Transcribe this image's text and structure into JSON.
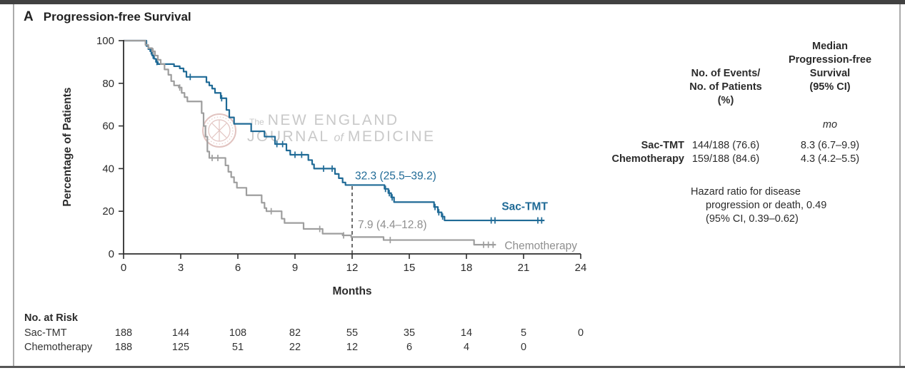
{
  "panel": {
    "letter": "A",
    "title": "Progression-free Survival"
  },
  "colors": {
    "sac_tmt": "#1f6a96",
    "chemo": "#9e9e9e",
    "axis": "#2f2f2f",
    "text": "#2b2b2b",
    "annotation_gray": "#8f8f8f",
    "watermark": "#c9c9c9",
    "seal": "#c9938d"
  },
  "watermark": {
    "the": "The",
    "line1": "NEW ENGLAND",
    "journal": "JOURNAL",
    "of": "of",
    "medicine": "MEDICINE"
  },
  "chart_data": {
    "type": "line",
    "subtype": "kaplan-meier-step",
    "xlabel": "Months",
    "ylabel": "Percentage of Patients",
    "xlim": [
      0,
      24
    ],
    "ylim": [
      0,
      100
    ],
    "xticks": [
      0,
      3,
      6,
      9,
      12,
      15,
      18,
      21,
      24
    ],
    "yticks": [
      0,
      20,
      40,
      60,
      80,
      100
    ],
    "grid": false,
    "dashed_reference_month": 12,
    "series": [
      {
        "name": "Sac-TMT",
        "color_key": "sac_tmt",
        "annotation": "32.3 (25.5–39.2)",
        "annotation_x": 12.15,
        "annotation_y": 35,
        "end_label": "Sac-TMT",
        "end_label_x": 19.85,
        "end_label_y": 20.5,
        "end_label_bold": true,
        "steps": [
          [
            0,
            100
          ],
          [
            1.1,
            100
          ],
          [
            1.2,
            97.5
          ],
          [
            1.3,
            96
          ],
          [
            1.4,
            95
          ],
          [
            1.5,
            93
          ],
          [
            1.6,
            91.5
          ],
          [
            1.7,
            90
          ],
          [
            1.8,
            89
          ],
          [
            2.55,
            89
          ],
          [
            2.65,
            88
          ],
          [
            2.95,
            87
          ],
          [
            3.15,
            85.5
          ],
          [
            3.3,
            83
          ],
          [
            4.25,
            83
          ],
          [
            4.35,
            80.5
          ],
          [
            4.5,
            79
          ],
          [
            4.65,
            77.5
          ],
          [
            4.8,
            75.5
          ],
          [
            5.1,
            73
          ],
          [
            5.4,
            67.5
          ],
          [
            5.55,
            64
          ],
          [
            5.8,
            61
          ],
          [
            6.6,
            61
          ],
          [
            6.7,
            57.5
          ],
          [
            7.3,
            57.5
          ],
          [
            7.4,
            55
          ],
          [
            7.85,
            55
          ],
          [
            7.95,
            51.5
          ],
          [
            8.45,
            51.5
          ],
          [
            8.55,
            48.5
          ],
          [
            8.75,
            46.5
          ],
          [
            9.6,
            46.5
          ],
          [
            9.7,
            44
          ],
          [
            9.9,
            42
          ],
          [
            10.0,
            40
          ],
          [
            11.0,
            40
          ],
          [
            11.1,
            37.5
          ],
          [
            11.3,
            35.5
          ],
          [
            11.5,
            33.5
          ],
          [
            11.65,
            32.3
          ],
          [
            13.6,
            32.3
          ],
          [
            13.7,
            30.5
          ],
          [
            13.9,
            28.5
          ],
          [
            14.05,
            26.5
          ],
          [
            14.2,
            24.3
          ],
          [
            16.2,
            24.3
          ],
          [
            16.3,
            22
          ],
          [
            16.5,
            19.5
          ],
          [
            16.7,
            17.5
          ],
          [
            16.85,
            15.7
          ],
          [
            22.1,
            15.7
          ]
        ],
        "censors": [
          [
            1.45,
            95
          ],
          [
            1.55,
            93
          ],
          [
            1.75,
            90
          ],
          [
            3.5,
            83
          ],
          [
            5.15,
            73
          ],
          [
            8.05,
            51.5
          ],
          [
            8.35,
            51.5
          ],
          [
            9.0,
            46.5
          ],
          [
            9.35,
            46.5
          ],
          [
            10.5,
            40
          ],
          [
            10.95,
            40
          ],
          [
            13.75,
            30.5
          ],
          [
            13.95,
            28.5
          ],
          [
            14.1,
            26.5
          ],
          [
            16.35,
            22
          ],
          [
            16.55,
            19.5
          ],
          [
            16.75,
            17.5
          ],
          [
            19.3,
            15.7
          ],
          [
            19.5,
            15.7
          ],
          [
            21.75,
            15.7
          ],
          [
            21.95,
            15.7
          ]
        ]
      },
      {
        "name": "Chemotherapy",
        "color_key": "chemo",
        "annotation": "7.9 (4.4–12.8)",
        "annotation_x": 12.3,
        "annotation_y": 12,
        "end_label": "Chemotherapy",
        "end_label_x": 20.0,
        "end_label_y": 2.2,
        "end_label_bold": false,
        "steps": [
          [
            0,
            100
          ],
          [
            1.05,
            100
          ],
          [
            1.15,
            98
          ],
          [
            1.3,
            96.5
          ],
          [
            1.5,
            95
          ],
          [
            1.65,
            93
          ],
          [
            1.8,
            91
          ],
          [
            1.95,
            89
          ],
          [
            2.15,
            86.5
          ],
          [
            2.35,
            84
          ],
          [
            2.5,
            81
          ],
          [
            2.65,
            79
          ],
          [
            2.9,
            78
          ],
          [
            3.05,
            75.5
          ],
          [
            3.2,
            73.5
          ],
          [
            3.35,
            71.5
          ],
          [
            4.0,
            71.5
          ],
          [
            4.1,
            66
          ],
          [
            4.2,
            60
          ],
          [
            4.3,
            55
          ],
          [
            4.4,
            48
          ],
          [
            4.5,
            45
          ],
          [
            5.25,
            45
          ],
          [
            5.35,
            41.5
          ],
          [
            5.5,
            38.5
          ],
          [
            5.65,
            36
          ],
          [
            5.8,
            33.5
          ],
          [
            5.95,
            31
          ],
          [
            6.35,
            31
          ],
          [
            6.45,
            27.5
          ],
          [
            7.15,
            27.5
          ],
          [
            7.25,
            24
          ],
          [
            7.4,
            21.5
          ],
          [
            7.5,
            20
          ],
          [
            8.2,
            20
          ],
          [
            8.3,
            16.5
          ],
          [
            8.45,
            14.5
          ],
          [
            9.35,
            14.5
          ],
          [
            9.45,
            11.7
          ],
          [
            10.35,
            11.7
          ],
          [
            10.45,
            9.5
          ],
          [
            11.4,
            9.5
          ],
          [
            11.5,
            8.7
          ],
          [
            11.9,
            8.7
          ],
          [
            11.95,
            7.9
          ],
          [
            13.55,
            7.9
          ],
          [
            13.65,
            6.5
          ],
          [
            18.3,
            6.5
          ],
          [
            18.4,
            4.3
          ],
          [
            19.55,
            4.3
          ]
        ],
        "censors": [
          [
            1.55,
            95
          ],
          [
            2.95,
            78
          ],
          [
            4.65,
            45
          ],
          [
            4.95,
            45
          ],
          [
            7.75,
            20
          ],
          [
            10.3,
            11.7
          ],
          [
            11.55,
            8.7
          ],
          [
            14.0,
            6.5
          ],
          [
            18.9,
            4.3
          ],
          [
            19.15,
            4.3
          ],
          [
            19.4,
            4.3
          ]
        ]
      }
    ]
  },
  "risk_table": {
    "title": "No. at Risk",
    "rows": [
      {
        "label": "Sac-TMT",
        "counts": [
          188,
          144,
          108,
          82,
          55,
          35,
          14,
          5,
          0
        ]
      },
      {
        "label": "Chemotherapy",
        "counts": [
          188,
          125,
          51,
          22,
          12,
          6,
          4,
          0
        ]
      }
    ]
  },
  "summary_table": {
    "col1_header": [
      "No. of Events/",
      "No. of Patients",
      "(%)"
    ],
    "col2_header": [
      "Median",
      "Progression-free",
      "Survival",
      "(95% CI)"
    ],
    "unit": "mo",
    "rows": [
      {
        "label": "Sac-TMT",
        "events": "144/188 (76.6)",
        "median": "8.3 (6.7–9.9)"
      },
      {
        "label": "Chemotherapy",
        "events": "159/188 (84.6)",
        "median": "4.3 (4.2–5.5)"
      }
    ],
    "hazard": [
      "Hazard ratio for disease",
      "progression or death, 0.49",
      "(95% CI, 0.39–0.62)"
    ]
  }
}
